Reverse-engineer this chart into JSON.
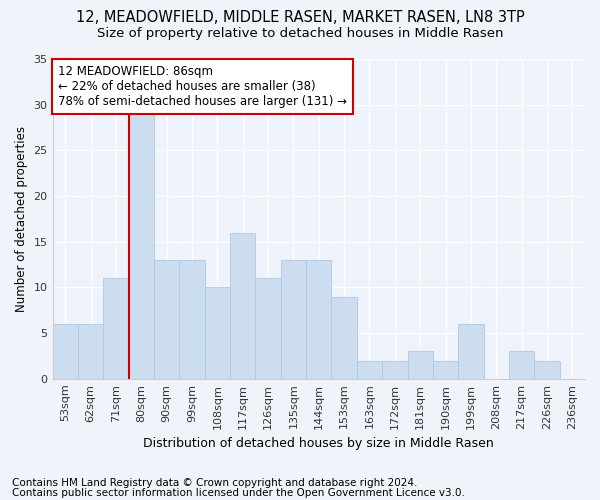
{
  "title1": "12, MEADOWFIELD, MIDDLE RASEN, MARKET RASEN, LN8 3TP",
  "title2": "Size of property relative to detached houses in Middle Rasen",
  "xlabel": "Distribution of detached houses by size in Middle Rasen",
  "ylabel": "Number of detached properties",
  "categories": [
    "53sqm",
    "62sqm",
    "71sqm",
    "80sqm",
    "90sqm",
    "99sqm",
    "108sqm",
    "117sqm",
    "126sqm",
    "135sqm",
    "144sqm",
    "153sqm",
    "163sqm",
    "172sqm",
    "181sqm",
    "190sqm",
    "199sqm",
    "208sqm",
    "217sqm",
    "226sqm",
    "236sqm"
  ],
  "values": [
    6,
    6,
    11,
    29,
    13,
    13,
    10,
    16,
    11,
    13,
    13,
    9,
    2,
    2,
    3,
    2,
    6,
    0,
    3,
    2,
    0
  ],
  "bar_color": "#ccddf0",
  "bar_edge_color": "#aec8e8",
  "marker_index": 3,
  "marker_color": "#cc0000",
  "annotation_line1": "12 MEADOWFIELD: 86sqm",
  "annotation_line2": "← 22% of detached houses are smaller (38)",
  "annotation_line3": "78% of semi-detached houses are larger (131) →",
  "annotation_box_color": "#ffffff",
  "annotation_box_edge": "#cc0000",
  "ylim": [
    0,
    35
  ],
  "yticks": [
    0,
    5,
    10,
    15,
    20,
    25,
    30,
    35
  ],
  "footnote1": "Contains HM Land Registry data © Crown copyright and database right 2024.",
  "footnote2": "Contains public sector information licensed under the Open Government Licence v3.0.",
  "bg_color": "#f0f4fa",
  "plot_bg_color": "#eef3fb",
  "grid_color": "#ffffff",
  "title1_fontsize": 10.5,
  "title2_fontsize": 9.5,
  "xlabel_fontsize": 9,
  "ylabel_fontsize": 8.5,
  "tick_fontsize": 8,
  "annot_fontsize": 8.5,
  "footnote_fontsize": 7.5
}
